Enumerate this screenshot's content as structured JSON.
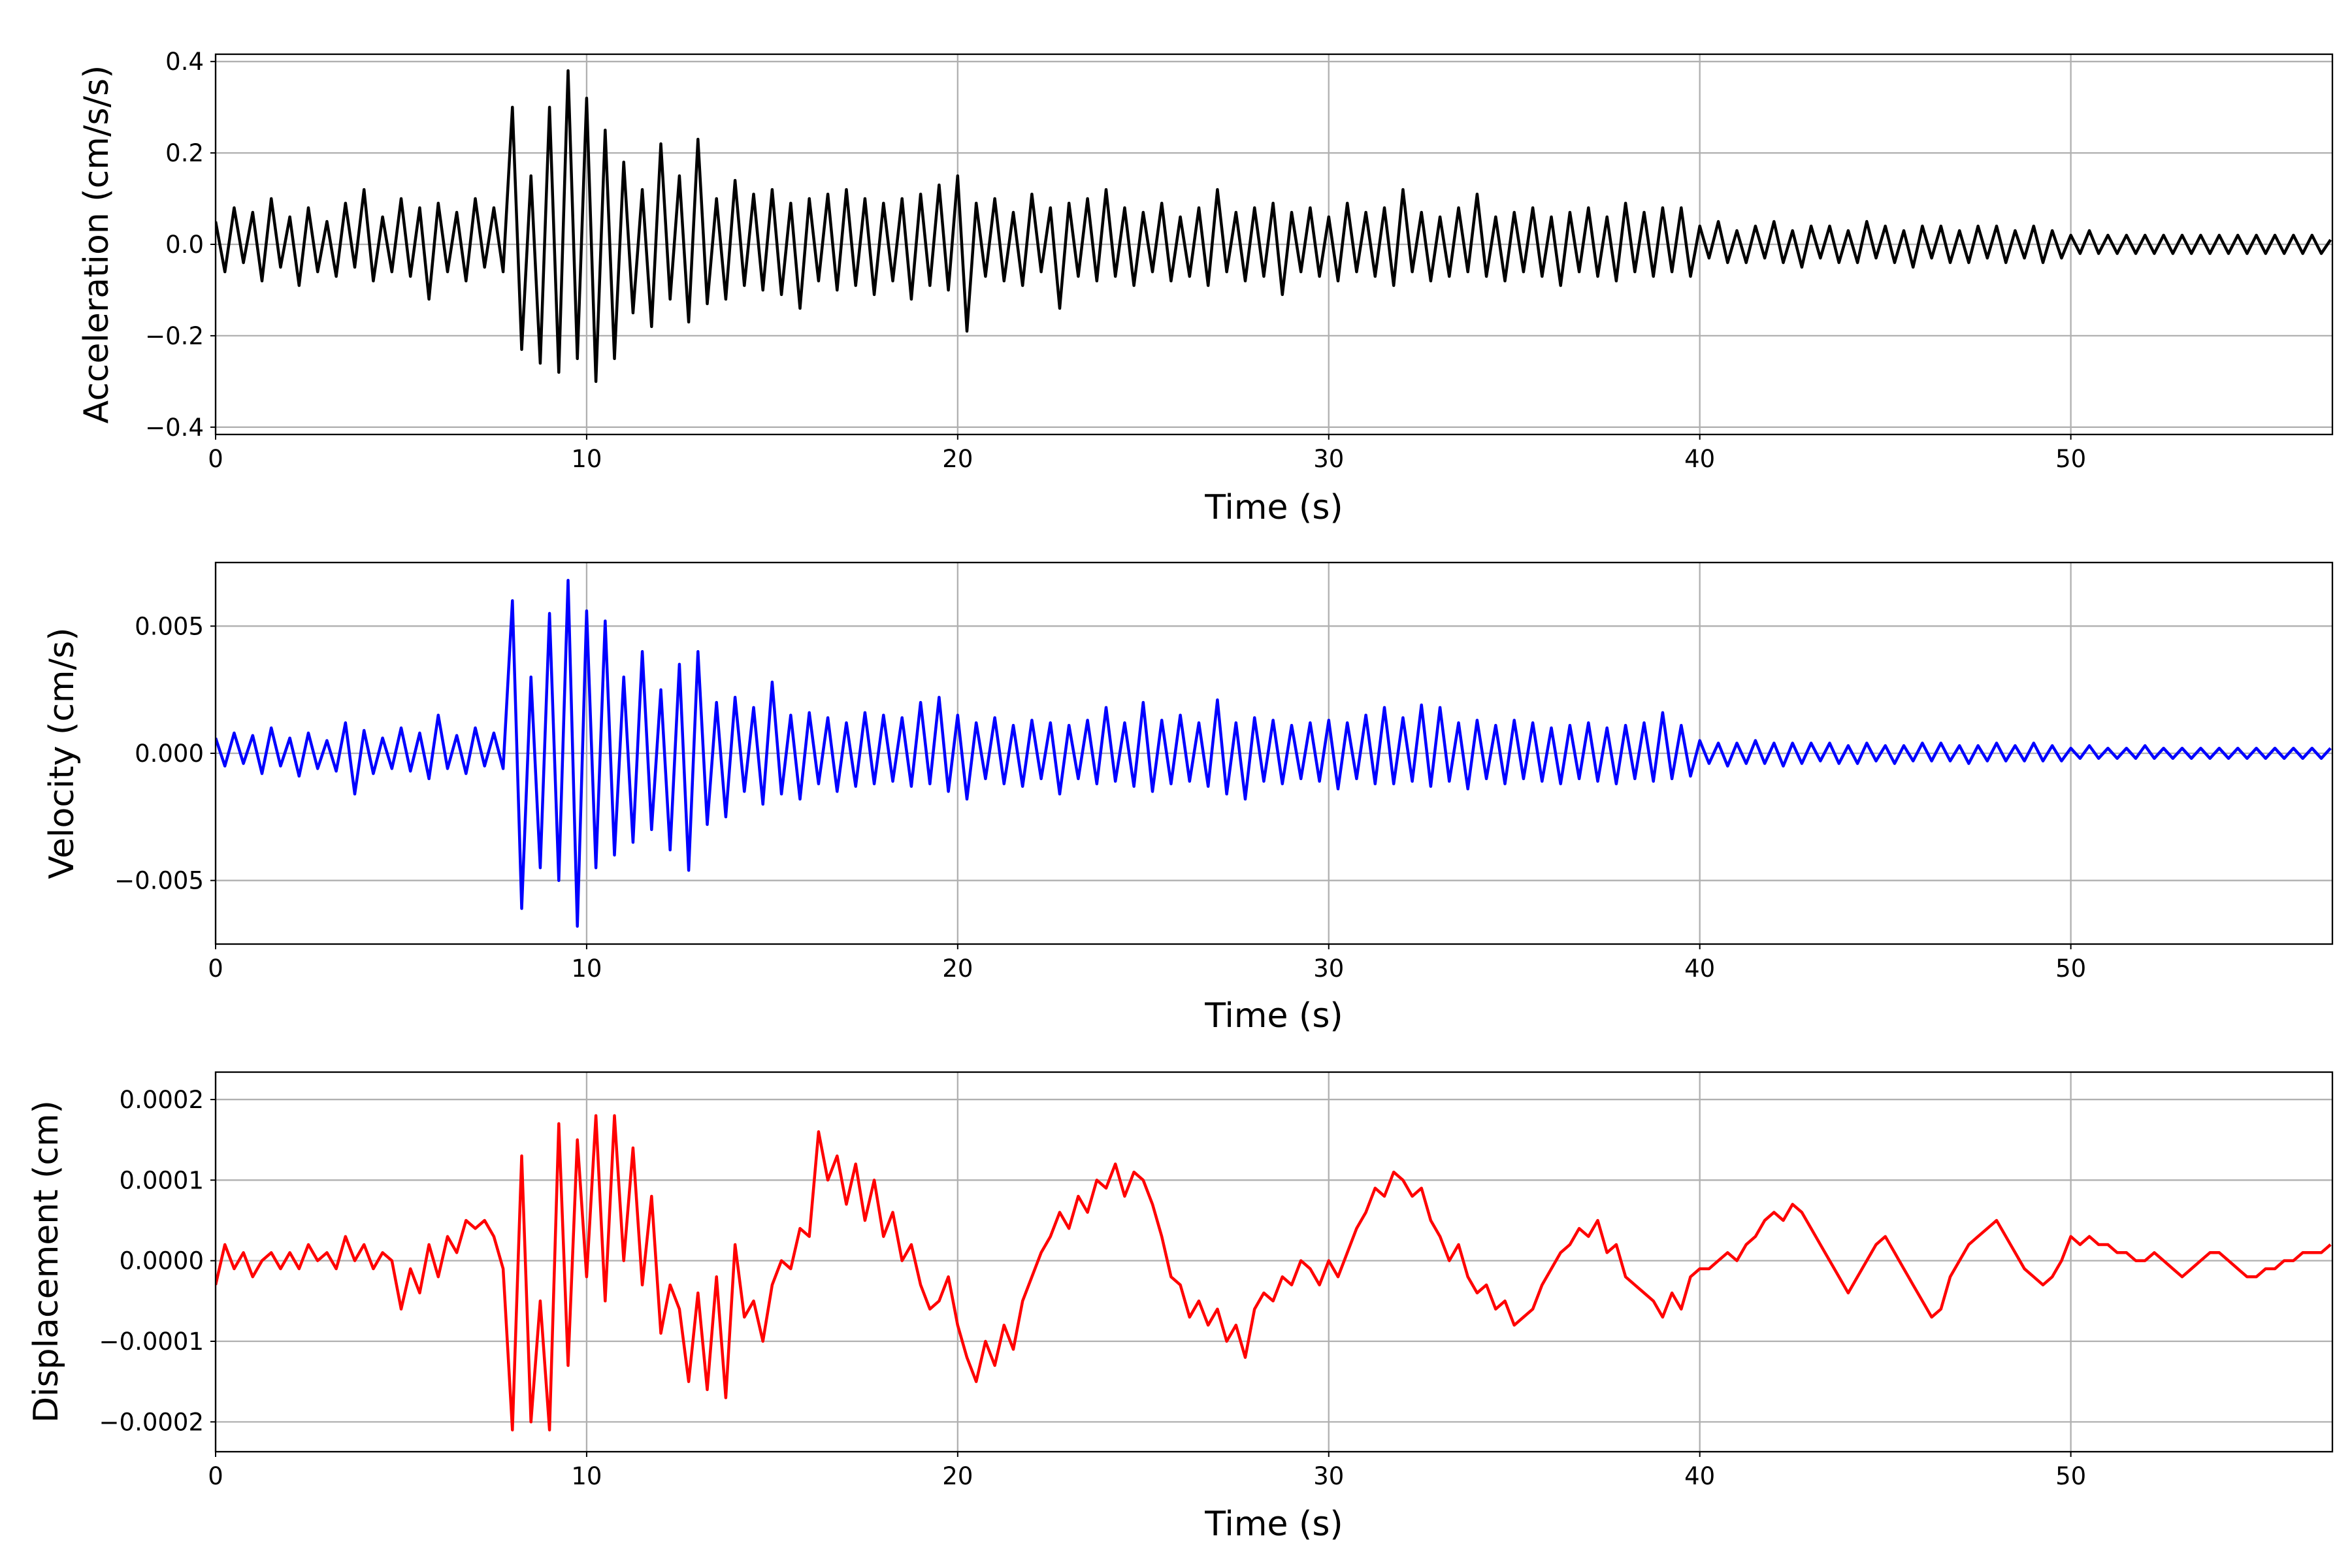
{
  "chart_data": [
    {
      "type": "line",
      "xlabel": "Time (s)",
      "ylabel": "Acceleration (cm/s/s)",
      "color": "#000000",
      "xlim": [
        0,
        57.05
      ],
      "ylim": [
        -0.416,
        0.416
      ],
      "grid": true,
      "xticks": [
        {
          "v": 0,
          "label": "0"
        },
        {
          "v": 10,
          "label": "10"
        },
        {
          "v": 20,
          "label": "20"
        },
        {
          "v": 30,
          "label": "30"
        },
        {
          "v": 40,
          "label": "40"
        },
        {
          "v": 50,
          "label": "50"
        }
      ],
      "yticks": [
        {
          "v": -0.4,
          "label": "−0.4"
        },
        {
          "v": -0.2,
          "label": "−0.2"
        },
        {
          "v": 0,
          "label": "0.0"
        },
        {
          "v": 0.2,
          "label": "0.2"
        },
        {
          "v": 0.4,
          "label": "0.4"
        }
      ],
      "sample_interval_s": 0.25,
      "values": [
        0.05,
        -0.06,
        0.08,
        -0.04,
        0.07,
        -0.08,
        0.1,
        -0.05,
        0.06,
        -0.09,
        0.08,
        -0.06,
        0.05,
        -0.07,
        0.09,
        -0.05,
        0.12,
        -0.08,
        0.06,
        -0.06,
        0.1,
        -0.07,
        0.08,
        -0.12,
        0.09,
        -0.06,
        0.07,
        -0.08,
        0.1,
        -0.05,
        0.08,
        -0.06,
        0.3,
        -0.23,
        0.15,
        -0.26,
        0.3,
        -0.28,
        0.38,
        -0.25,
        0.32,
        -0.3,
        0.25,
        -0.25,
        0.18,
        -0.15,
        0.12,
        -0.18,
        0.22,
        -0.12,
        0.15,
        -0.17,
        0.23,
        -0.13,
        0.1,
        -0.12,
        0.14,
        -0.09,
        0.11,
        -0.1,
        0.12,
        -0.11,
        0.09,
        -0.14,
        0.1,
        -0.08,
        0.11,
        -0.1,
        0.12,
        -0.09,
        0.1,
        -0.11,
        0.09,
        -0.08,
        0.1,
        -0.12,
        0.11,
        -0.09,
        0.13,
        -0.1,
        0.15,
        -0.19,
        0.09,
        -0.07,
        0.1,
        -0.08,
        0.07,
        -0.09,
        0.11,
        -0.06,
        0.08,
        -0.14,
        0.09,
        -0.07,
        0.1,
        -0.08,
        0.12,
        -0.07,
        0.08,
        -0.09,
        0.07,
        -0.06,
        0.09,
        -0.08,
        0.06,
        -0.07,
        0.08,
        -0.09,
        0.12,
        -0.06,
        0.07,
        -0.08,
        0.08,
        -0.07,
        0.09,
        -0.11,
        0.07,
        -0.06,
        0.08,
        -0.07,
        0.06,
        -0.08,
        0.09,
        -0.06,
        0.07,
        -0.07,
        0.08,
        -0.09,
        0.12,
        -0.06,
        0.07,
        -0.08,
        0.06,
        -0.07,
        0.08,
        -0.06,
        0.11,
        -0.07,
        0.06,
        -0.08,
        0.07,
        -0.06,
        0.08,
        -0.07,
        0.06,
        -0.09,
        0.07,
        -0.06,
        0.08,
        -0.07,
        0.06,
        -0.08,
        0.09,
        -0.06,
        0.07,
        -0.07,
        0.08,
        -0.06,
        0.08,
        -0.07,
        0.04,
        -0.03,
        0.05,
        -0.04,
        0.03,
        -0.04,
        0.04,
        -0.03,
        0.05,
        -0.04,
        0.03,
        -0.05,
        0.04,
        -0.03,
        0.04,
        -0.04,
        0.03,
        -0.04,
        0.05,
        -0.03,
        0.04,
        -0.04,
        0.03,
        -0.05,
        0.04,
        -0.03,
        0.04,
        -0.04,
        0.03,
        -0.04,
        0.04,
        -0.03,
        0.04,
        -0.04,
        0.03,
        -0.03,
        0.04,
        -0.04,
        0.03,
        -0.03,
        0.02,
        -0.02,
        0.03,
        -0.02,
        0.02,
        -0.02,
        0.02,
        -0.02,
        0.02,
        -0.02,
        0.02,
        -0.02,
        0.02,
        -0.02,
        0.02,
        -0.02,
        0.02,
        -0.02,
        0.02,
        -0.02,
        0.02,
        -0.02,
        0.02,
        -0.02,
        0.02,
        -0.02,
        0.02,
        -0.02,
        0.01
      ]
    },
    {
      "type": "line",
      "xlabel": "Time (s)",
      "ylabel": "Velocity (cm/s)",
      "color": "#0000ff",
      "xlim": [
        0,
        57.05
      ],
      "ylim": [
        -0.0075,
        0.0075
      ],
      "grid": true,
      "xticks": [
        {
          "v": 0,
          "label": "0"
        },
        {
          "v": 10,
          "label": "10"
        },
        {
          "v": 20,
          "label": "20"
        },
        {
          "v": 30,
          "label": "30"
        },
        {
          "v": 40,
          "label": "40"
        },
        {
          "v": 50,
          "label": "50"
        }
      ],
      "yticks": [
        {
          "v": -0.005,
          "label": "−0.005"
        },
        {
          "v": 0,
          "label": "0.000"
        },
        {
          "v": 0.005,
          "label": "0.005"
        }
      ],
      "sample_interval_s": 0.25,
      "values": [
        0.0006,
        -0.0005,
        0.0008,
        -0.0004,
        0.0007,
        -0.0008,
        0.001,
        -0.0005,
        0.0006,
        -0.0009,
        0.0008,
        -0.0006,
        0.0005,
        -0.0007,
        0.0012,
        -0.0016,
        0.0009,
        -0.0008,
        0.0006,
        -0.0006,
        0.001,
        -0.0007,
        0.0008,
        -0.001,
        0.0015,
        -0.0006,
        0.0007,
        -0.0008,
        0.001,
        -0.0005,
        0.0008,
        -0.0006,
        0.006,
        -0.0061,
        0.003,
        -0.0045,
        0.0055,
        -0.005,
        0.0068,
        -0.0068,
        0.0056,
        -0.0045,
        0.0052,
        -0.004,
        0.003,
        -0.0035,
        0.004,
        -0.003,
        0.0025,
        -0.0038,
        0.0035,
        -0.0046,
        0.004,
        -0.0028,
        0.002,
        -0.0025,
        0.0022,
        -0.0015,
        0.0018,
        -0.002,
        0.0028,
        -0.0016,
        0.0015,
        -0.0018,
        0.0016,
        -0.0012,
        0.0014,
        -0.0015,
        0.0012,
        -0.0013,
        0.0016,
        -0.0012,
        0.0015,
        -0.0011,
        0.0014,
        -0.0013,
        0.002,
        -0.0012,
        0.0022,
        -0.0015,
        0.0015,
        -0.0018,
        0.0012,
        -0.001,
        0.0014,
        -0.0012,
        0.0011,
        -0.0013,
        0.0013,
        -0.001,
        0.0012,
        -0.0016,
        0.0011,
        -0.001,
        0.0013,
        -0.0012,
        0.0018,
        -0.0011,
        0.0012,
        -0.0013,
        0.002,
        -0.0015,
        0.0013,
        -0.0012,
        0.0015,
        -0.0011,
        0.0012,
        -0.0013,
        0.0021,
        -0.0016,
        0.0012,
        -0.0018,
        0.0014,
        -0.0011,
        0.0013,
        -0.0012,
        0.0011,
        -0.001,
        0.0012,
        -0.0011,
        0.0013,
        -0.0014,
        0.0012,
        -0.001,
        0.0015,
        -0.0012,
        0.0018,
        -0.0012,
        0.0014,
        -0.0011,
        0.0019,
        -0.0013,
        0.0018,
        -0.0011,
        0.0012,
        -0.0014,
        0.0013,
        -0.001,
        0.0011,
        -0.0012,
        0.0013,
        -0.001,
        0.0012,
        -0.0011,
        0.001,
        -0.0012,
        0.0011,
        -0.001,
        0.0012,
        -0.0011,
        0.001,
        -0.0012,
        0.0011,
        -0.001,
        0.0012,
        -0.0011,
        0.0016,
        -0.001,
        0.0011,
        -0.0009,
        0.0005,
        -0.0004,
        0.0004,
        -0.0005,
        0.0004,
        -0.0004,
        0.0005,
        -0.0004,
        0.0004,
        -0.0005,
        0.0004,
        -0.0004,
        0.0004,
        -0.0003,
        0.0004,
        -0.0004,
        0.0003,
        -0.0004,
        0.0004,
        -0.0003,
        0.0003,
        -0.0004,
        0.0003,
        -0.0003,
        0.0004,
        -0.0003,
        0.0004,
        -0.0003,
        0.0003,
        -0.0004,
        0.0003,
        -0.0003,
        0.0004,
        -0.0003,
        0.0003,
        -0.0003,
        0.0004,
        -0.0003,
        0.0003,
        -0.0003,
        0.0002,
        -0.0002,
        0.0003,
        -0.0002,
        0.0002,
        -0.0002,
        0.0002,
        -0.0002,
        0.0003,
        -0.0002,
        0.0002,
        -0.0002,
        0.0002,
        -0.0002,
        0.0002,
        -0.0002,
        0.0002,
        -0.0002,
        0.0002,
        -0.0002,
        0.0002,
        -0.0002,
        0.0002,
        -0.0002,
        0.0002,
        -0.0002,
        0.0002,
        -0.0002,
        0.0002
      ]
    },
    {
      "type": "line",
      "xlabel": "Time (s)",
      "ylabel": "Displacement (cm)",
      "color": "#ff0000",
      "xlim": [
        0,
        57.05
      ],
      "ylim": [
        -0.000237,
        0.000234
      ],
      "grid": true,
      "xticks": [
        {
          "v": 0,
          "label": "0"
        },
        {
          "v": 10,
          "label": "10"
        },
        {
          "v": 20,
          "label": "20"
        },
        {
          "v": 30,
          "label": "30"
        },
        {
          "v": 40,
          "label": "40"
        },
        {
          "v": 50,
          "label": "50"
        }
      ],
      "yticks": [
        {
          "v": -0.0002,
          "label": "−0.0002"
        },
        {
          "v": -0.0001,
          "label": "−0.0001"
        },
        {
          "v": 0,
          "label": "0.0000"
        },
        {
          "v": 0.0001,
          "label": "0.0001"
        },
        {
          "v": 0.0002,
          "label": "0.0002"
        }
      ],
      "sample_interval_s": 0.25,
      "values": [
        -3e-05,
        2e-05,
        -1e-05,
        1e-05,
        -2e-05,
        0,
        1e-05,
        -1e-05,
        1e-05,
        -1e-05,
        2e-05,
        0,
        1e-05,
        -1e-05,
        3e-05,
        0,
        2e-05,
        -1e-05,
        1e-05,
        0,
        -6e-05,
        -1e-05,
        -4e-05,
        2e-05,
        -2e-05,
        3e-05,
        1e-05,
        5e-05,
        4e-05,
        5e-05,
        3e-05,
        -1e-05,
        -0.00021,
        0.00013,
        -0.0002,
        -5e-05,
        -0.00021,
        0.00017,
        -0.00013,
        0.00015,
        -2e-05,
        0.00018,
        -5e-05,
        0.00018,
        0,
        0.00014,
        -3e-05,
        8e-05,
        -9e-05,
        -3e-05,
        -6e-05,
        -0.00015,
        -4e-05,
        -0.00016,
        -2e-05,
        -0.00017,
        2e-05,
        -7e-05,
        -5e-05,
        -0.0001,
        -3e-05,
        0,
        -1e-05,
        4e-05,
        3e-05,
        0.00016,
        0.0001,
        0.00013,
        7e-05,
        0.00012,
        5e-05,
        0.0001,
        3e-05,
        6e-05,
        0,
        2e-05,
        -3e-05,
        -6e-05,
        -5e-05,
        -2e-05,
        -8e-05,
        -0.00012,
        -0.00015,
        -0.0001,
        -0.00013,
        -8e-05,
        -0.00011,
        -5e-05,
        -2e-05,
        1e-05,
        3e-05,
        6e-05,
        4e-05,
        8e-05,
        6e-05,
        0.0001,
        9e-05,
        0.00012,
        8e-05,
        0.00011,
        0.0001,
        7e-05,
        3e-05,
        -2e-05,
        -3e-05,
        -7e-05,
        -5e-05,
        -8e-05,
        -6e-05,
        -0.0001,
        -8e-05,
        -0.00012,
        -6e-05,
        -4e-05,
        -5e-05,
        -2e-05,
        -3e-05,
        0,
        -1e-05,
        -3e-05,
        0,
        -2e-05,
        1e-05,
        4e-05,
        6e-05,
        9e-05,
        8e-05,
        0.00011,
        0.0001,
        8e-05,
        9e-05,
        5e-05,
        3e-05,
        0,
        2e-05,
        -2e-05,
        -4e-05,
        -3e-05,
        -6e-05,
        -5e-05,
        -8e-05,
        -7e-05,
        -6e-05,
        -3e-05,
        -1e-05,
        1e-05,
        2e-05,
        4e-05,
        3e-05,
        5e-05,
        1e-05,
        2e-05,
        -2e-05,
        -3e-05,
        -4e-05,
        -5e-05,
        -7e-05,
        -4e-05,
        -6e-05,
        -2e-05,
        -1e-05,
        -1e-05,
        0,
        1e-05,
        0,
        2e-05,
        3e-05,
        5e-05,
        6e-05,
        5e-05,
        7e-05,
        6e-05,
        4e-05,
        2e-05,
        0,
        -2e-05,
        -4e-05,
        -2e-05,
        0,
        2e-05,
        3e-05,
        1e-05,
        -1e-05,
        -3e-05,
        -5e-05,
        -7e-05,
        -6e-05,
        -2e-05,
        0,
        2e-05,
        3e-05,
        4e-05,
        5e-05,
        3e-05,
        1e-05,
        -1e-05,
        -2e-05,
        -3e-05,
        -2e-05,
        0,
        3e-05,
        2e-05,
        3e-05,
        2e-05,
        2e-05,
        1e-05,
        1e-05,
        0,
        0,
        1e-05,
        0,
        -1e-05,
        -2e-05,
        -1e-05,
        0,
        1e-05,
        1e-05,
        0,
        -1e-05,
        -2e-05,
        -2e-05,
        -1e-05,
        -1e-05,
        0,
        0,
        1e-05,
        1e-05,
        1e-05,
        2e-05
      ]
    }
  ]
}
